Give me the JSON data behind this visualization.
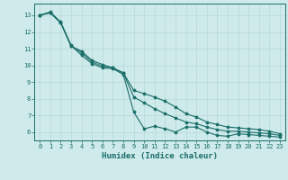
{
  "xlabel": "Humidex (Indice chaleur)",
  "bg_color": "#ceeaea",
  "line_color": "#1a6e6a",
  "grid_color": "#b8d8d8",
  "xlim": [
    -0.5,
    23.5
  ],
  "ylim": [
    5.5,
    13.7
  ],
  "yticks": [
    6,
    7,
    8,
    9,
    10,
    11,
    12,
    13
  ],
  "xticks": [
    0,
    1,
    2,
    3,
    4,
    5,
    6,
    7,
    8,
    9,
    10,
    11,
    12,
    13,
    14,
    15,
    16,
    17,
    18,
    19,
    20,
    21,
    22,
    23
  ],
  "line1_x": [
    0,
    1,
    2,
    3,
    4,
    5,
    6,
    7,
    8,
    9,
    10,
    11,
    12,
    13,
    14,
    15,
    16,
    17,
    18,
    19,
    20,
    21,
    22,
    23
  ],
  "line1_y": [
    13.0,
    13.2,
    12.6,
    11.2,
    10.6,
    10.1,
    9.85,
    9.8,
    9.45,
    7.2,
    6.2,
    6.35,
    6.2,
    6.0,
    6.3,
    6.3,
    6.0,
    5.8,
    5.75,
    5.9,
    5.85,
    5.8,
    5.75,
    5.7
  ],
  "line2_x": [
    0,
    1,
    2,
    3,
    4,
    5,
    6,
    7,
    8,
    9,
    10,
    11,
    12,
    13,
    14,
    15,
    16,
    17,
    18,
    19,
    20,
    21,
    22,
    23
  ],
  "line2_y": [
    13.0,
    13.15,
    12.55,
    11.15,
    10.85,
    10.3,
    10.05,
    9.85,
    9.55,
    8.1,
    7.75,
    7.4,
    7.1,
    6.85,
    6.6,
    6.5,
    6.3,
    6.15,
    6.05,
    6.05,
    6.0,
    5.95,
    5.9,
    5.8
  ],
  "line3_x": [
    0,
    1,
    2,
    3,
    4,
    5,
    6,
    7,
    8,
    9,
    10,
    11,
    12,
    13,
    14,
    15,
    16,
    17,
    18,
    19,
    20,
    21,
    22,
    23
  ],
  "line3_y": [
    13.0,
    13.15,
    12.55,
    11.15,
    10.75,
    10.2,
    9.95,
    9.85,
    9.55,
    8.5,
    8.3,
    8.1,
    7.85,
    7.5,
    7.1,
    6.9,
    6.6,
    6.45,
    6.3,
    6.25,
    6.2,
    6.15,
    6.05,
    5.9
  ]
}
